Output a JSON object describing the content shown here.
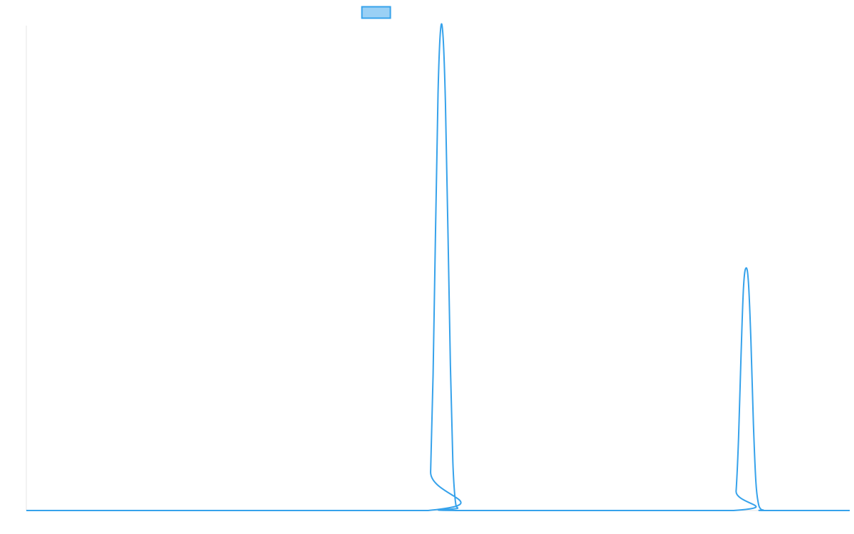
{
  "chart_data": {
    "type": "line",
    "title": "",
    "xlabel": "",
    "ylabel": "",
    "grid": false,
    "legend_placement": "top-center",
    "xlim": [
      0,
      100
    ],
    "ylim": [
      0,
      1
    ],
    "colors": {
      "line": "#36a2eb",
      "legend_fill": "#9ad0f5",
      "axis": "#e6e6e6"
    },
    "series": [
      {
        "name": "",
        "x": [
          0,
          48.8,
          49.1,
          49.4,
          49.7,
          50.0,
          50.3,
          50.6,
          50.9,
          51.2,
          51.5,
          51.8,
          52.1,
          52.4,
          52.8,
          85.9,
          86.2,
          86.5,
          86.8,
          87.1,
          87.4,
          87.7,
          88.0,
          88.3,
          88.6,
          88.9,
          89.2,
          89.5,
          89.9,
          100
        ],
        "y": [
          0,
          0,
          0.08,
          0.28,
          0.58,
          0.86,
          0.99,
          0.98,
          0.84,
          0.58,
          0.3,
          0.1,
          0.02,
          0.005,
          0,
          0,
          0.04,
          0.15,
          0.32,
          0.46,
          0.5,
          0.47,
          0.35,
          0.18,
          0.06,
          0.015,
          0.003,
          0.001,
          0,
          0
        ]
      }
    ]
  }
}
